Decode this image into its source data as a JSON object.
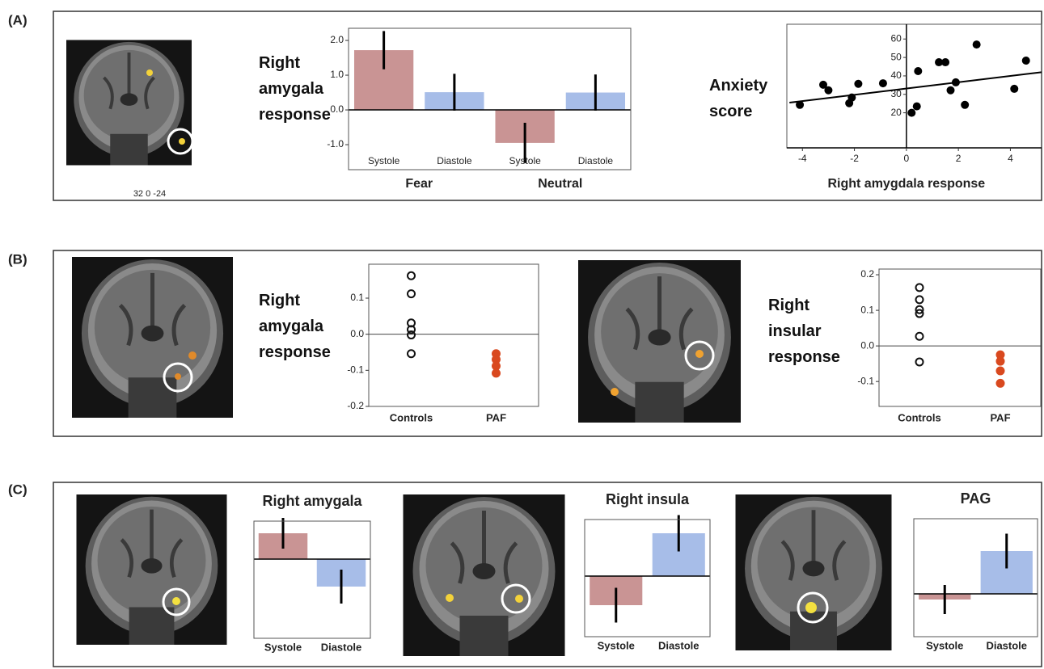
{
  "panels": [
    "(A)",
    "(B)",
    "(C)"
  ],
  "image_caption": "32 0 -24",
  "chart_data": [
    {
      "type": "bar",
      "ylabel": "Right amygala response",
      "categories": [
        "Systole",
        "Diastole",
        "Systole",
        "Diastole"
      ],
      "group_labels": [
        "Fear",
        "Neutral"
      ],
      "values": [
        1.72,
        0.51,
        -0.95,
        0.5
      ],
      "errors": [
        0.55,
        0.53,
        0.58,
        0.52
      ],
      "colors": [
        "#c99494",
        "#a7bde8",
        "#c99494",
        "#a7bde8"
      ],
      "ylim": [
        -1.72,
        2.35
      ],
      "yticks": [
        {
          "value": 2,
          "label": "2.0"
        },
        {
          "value": 1,
          "label": "1.0"
        },
        {
          "value": 0,
          "label": "0.0"
        },
        {
          "value": -1,
          "label": "-1.0"
        }
      ]
    },
    {
      "type": "scatter",
      "ylabel": "Anxiety score",
      "xlabel": "Right amygdala response",
      "x": [
        -4.1,
        -3.2,
        -3.0,
        -2.2,
        -2.1,
        -1.85,
        -0.9,
        0.2,
        0.4,
        0.45,
        1.25,
        1.5,
        1.7,
        1.9,
        2.25,
        2.7,
        4.15,
        4.6
      ],
      "y": [
        24.3,
        35.2,
        32.2,
        25.2,
        28.3,
        35.7,
        36,
        20,
        23.5,
        42.6,
        47.4,
        47.4,
        32.2,
        36.5,
        24.3,
        57,
        33,
        48.3
      ],
      "trendline": {
        "x": [
          -4.5,
          5.2
        ],
        "y": [
          25.5,
          42
        ]
      },
      "color": "#000000",
      "xlim": [
        -4.6,
        5.2
      ],
      "ylim": [
        1,
        68
      ],
      "xticks": [
        -4,
        -2,
        0,
        2,
        4
      ],
      "yticks": [
        20,
        30,
        40,
        50,
        60
      ]
    },
    {
      "type": "strip",
      "ylabel": "Right amygala response",
      "groups": [
        {
          "name": "Controls",
          "color": "#111111",
          "filled": false,
          "values": [
            0.162,
            0.112,
            0.031,
            0.013,
            -0.002,
            -0.054
          ]
        },
        {
          "name": "PAF",
          "color": "#d9491f",
          "filled": true,
          "values": [
            -0.054,
            -0.07,
            -0.088,
            -0.108
          ]
        }
      ],
      "ylim": [
        -0.2,
        0.194
      ],
      "yticks": [
        0.1,
        {
          "value": 0,
          "label": "0.0"
        },
        -0.1,
        -0.2
      ]
    },
    {
      "type": "strip",
      "ylabel": "Right insular response",
      "groups": [
        {
          "name": "Controls",
          "color": "#111111",
          "filled": false,
          "values": [
            0.164,
            0.13,
            0.102,
            0.091,
            0.027,
            -0.045
          ]
        },
        {
          "name": "PAF",
          "color": "#d9491f",
          "filled": true,
          "values": [
            -0.025,
            -0.043,
            -0.07,
            -0.105
          ]
        }
      ],
      "ylim": [
        -0.17,
        0.216
      ],
      "yticks": [
        0.2,
        0.1,
        {
          "value": 0,
          "label": "0.0"
        },
        -0.1
      ]
    },
    {
      "type": "bar",
      "title": "Right amygala",
      "categories": [
        "Systole",
        "Diastole"
      ],
      "values": [
        3.2,
        -3.4
      ],
      "errors": [
        1.9,
        2.1
      ],
      "colors": [
        "#c99494",
        "#a7bde8"
      ],
      "ylim": [
        -9.8,
        4.7
      ]
    },
    {
      "type": "bar",
      "title": "Right insula",
      "categories": [
        "Systole",
        "Diastole"
      ],
      "values": [
        -3.6,
        5.3
      ],
      "errors": [
        2.15,
        2.25
      ],
      "colors": [
        "#c99494",
        "#a7bde8"
      ],
      "ylim": [
        -7.5,
        7.0
      ]
    },
    {
      "type": "bar",
      "title": "PAG",
      "categories": [
        "Systole",
        "Diastole"
      ],
      "values": [
        -0.7,
        5.3
      ],
      "errors": [
        1.8,
        2.15
      ],
      "colors": [
        "#c99494",
        "#a7bde8"
      ],
      "ylim": [
        -5.3,
        9.3
      ]
    }
  ]
}
